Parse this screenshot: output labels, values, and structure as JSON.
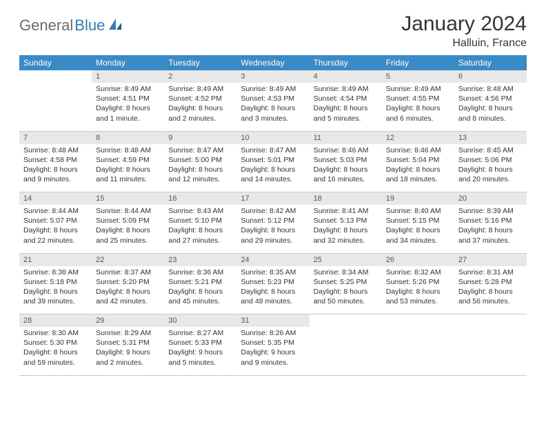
{
  "logo": {
    "part1": "General",
    "part2": "Blue"
  },
  "title": "January 2024",
  "location": "Halluin, France",
  "header_color": "#3a8ac8",
  "daynum_bg": "#e8e8e8",
  "weekdays": [
    "Sunday",
    "Monday",
    "Tuesday",
    "Wednesday",
    "Thursday",
    "Friday",
    "Saturday"
  ],
  "weeks": [
    [
      {
        "n": "",
        "sunrise": "",
        "sunset": "",
        "daylight": ""
      },
      {
        "n": "1",
        "sunrise": "Sunrise: 8:49 AM",
        "sunset": "Sunset: 4:51 PM",
        "daylight": "Daylight: 8 hours and 1 minute."
      },
      {
        "n": "2",
        "sunrise": "Sunrise: 8:49 AM",
        "sunset": "Sunset: 4:52 PM",
        "daylight": "Daylight: 8 hours and 2 minutes."
      },
      {
        "n": "3",
        "sunrise": "Sunrise: 8:49 AM",
        "sunset": "Sunset: 4:53 PM",
        "daylight": "Daylight: 8 hours and 3 minutes."
      },
      {
        "n": "4",
        "sunrise": "Sunrise: 8:49 AM",
        "sunset": "Sunset: 4:54 PM",
        "daylight": "Daylight: 8 hours and 5 minutes."
      },
      {
        "n": "5",
        "sunrise": "Sunrise: 8:49 AM",
        "sunset": "Sunset: 4:55 PM",
        "daylight": "Daylight: 8 hours and 6 minutes."
      },
      {
        "n": "6",
        "sunrise": "Sunrise: 8:48 AM",
        "sunset": "Sunset: 4:56 PM",
        "daylight": "Daylight: 8 hours and 8 minutes."
      }
    ],
    [
      {
        "n": "7",
        "sunrise": "Sunrise: 8:48 AM",
        "sunset": "Sunset: 4:58 PM",
        "daylight": "Daylight: 8 hours and 9 minutes."
      },
      {
        "n": "8",
        "sunrise": "Sunrise: 8:48 AM",
        "sunset": "Sunset: 4:59 PM",
        "daylight": "Daylight: 8 hours and 11 minutes."
      },
      {
        "n": "9",
        "sunrise": "Sunrise: 8:47 AM",
        "sunset": "Sunset: 5:00 PM",
        "daylight": "Daylight: 8 hours and 12 minutes."
      },
      {
        "n": "10",
        "sunrise": "Sunrise: 8:47 AM",
        "sunset": "Sunset: 5:01 PM",
        "daylight": "Daylight: 8 hours and 14 minutes."
      },
      {
        "n": "11",
        "sunrise": "Sunrise: 8:46 AM",
        "sunset": "Sunset: 5:03 PM",
        "daylight": "Daylight: 8 hours and 16 minutes."
      },
      {
        "n": "12",
        "sunrise": "Sunrise: 8:46 AM",
        "sunset": "Sunset: 5:04 PM",
        "daylight": "Daylight: 8 hours and 18 minutes."
      },
      {
        "n": "13",
        "sunrise": "Sunrise: 8:45 AM",
        "sunset": "Sunset: 5:06 PM",
        "daylight": "Daylight: 8 hours and 20 minutes."
      }
    ],
    [
      {
        "n": "14",
        "sunrise": "Sunrise: 8:44 AM",
        "sunset": "Sunset: 5:07 PM",
        "daylight": "Daylight: 8 hours and 22 minutes."
      },
      {
        "n": "15",
        "sunrise": "Sunrise: 8:44 AM",
        "sunset": "Sunset: 5:09 PM",
        "daylight": "Daylight: 8 hours and 25 minutes."
      },
      {
        "n": "16",
        "sunrise": "Sunrise: 8:43 AM",
        "sunset": "Sunset: 5:10 PM",
        "daylight": "Daylight: 8 hours and 27 minutes."
      },
      {
        "n": "17",
        "sunrise": "Sunrise: 8:42 AM",
        "sunset": "Sunset: 5:12 PM",
        "daylight": "Daylight: 8 hours and 29 minutes."
      },
      {
        "n": "18",
        "sunrise": "Sunrise: 8:41 AM",
        "sunset": "Sunset: 5:13 PM",
        "daylight": "Daylight: 8 hours and 32 minutes."
      },
      {
        "n": "19",
        "sunrise": "Sunrise: 8:40 AM",
        "sunset": "Sunset: 5:15 PM",
        "daylight": "Daylight: 8 hours and 34 minutes."
      },
      {
        "n": "20",
        "sunrise": "Sunrise: 8:39 AM",
        "sunset": "Sunset: 5:16 PM",
        "daylight": "Daylight: 8 hours and 37 minutes."
      }
    ],
    [
      {
        "n": "21",
        "sunrise": "Sunrise: 8:38 AM",
        "sunset": "Sunset: 5:18 PM",
        "daylight": "Daylight: 8 hours and 39 minutes."
      },
      {
        "n": "22",
        "sunrise": "Sunrise: 8:37 AM",
        "sunset": "Sunset: 5:20 PM",
        "daylight": "Daylight: 8 hours and 42 minutes."
      },
      {
        "n": "23",
        "sunrise": "Sunrise: 8:36 AM",
        "sunset": "Sunset: 5:21 PM",
        "daylight": "Daylight: 8 hours and 45 minutes."
      },
      {
        "n": "24",
        "sunrise": "Sunrise: 8:35 AM",
        "sunset": "Sunset: 5:23 PM",
        "daylight": "Daylight: 8 hours and 48 minutes."
      },
      {
        "n": "25",
        "sunrise": "Sunrise: 8:34 AM",
        "sunset": "Sunset: 5:25 PM",
        "daylight": "Daylight: 8 hours and 50 minutes."
      },
      {
        "n": "26",
        "sunrise": "Sunrise: 8:32 AM",
        "sunset": "Sunset: 5:26 PM",
        "daylight": "Daylight: 8 hours and 53 minutes."
      },
      {
        "n": "27",
        "sunrise": "Sunrise: 8:31 AM",
        "sunset": "Sunset: 5:28 PM",
        "daylight": "Daylight: 8 hours and 56 minutes."
      }
    ],
    [
      {
        "n": "28",
        "sunrise": "Sunrise: 8:30 AM",
        "sunset": "Sunset: 5:30 PM",
        "daylight": "Daylight: 8 hours and 59 minutes."
      },
      {
        "n": "29",
        "sunrise": "Sunrise: 8:29 AM",
        "sunset": "Sunset: 5:31 PM",
        "daylight": "Daylight: 9 hours and 2 minutes."
      },
      {
        "n": "30",
        "sunrise": "Sunrise: 8:27 AM",
        "sunset": "Sunset: 5:33 PM",
        "daylight": "Daylight: 9 hours and 5 minutes."
      },
      {
        "n": "31",
        "sunrise": "Sunrise: 8:26 AM",
        "sunset": "Sunset: 5:35 PM",
        "daylight": "Daylight: 9 hours and 9 minutes."
      },
      {
        "n": "",
        "sunrise": "",
        "sunset": "",
        "daylight": ""
      },
      {
        "n": "",
        "sunrise": "",
        "sunset": "",
        "daylight": ""
      },
      {
        "n": "",
        "sunrise": "",
        "sunset": "",
        "daylight": ""
      }
    ]
  ]
}
